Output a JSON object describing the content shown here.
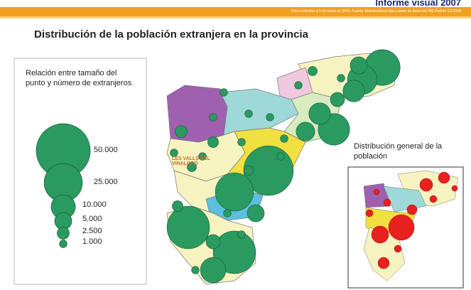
{
  "header": {
    "report": "Informe visual 2007",
    "source": "Datos referidos a 1 de enero de 2006. Fuente: Elaboración propia a partir de datos del INE Padrón 1/1/2006"
  },
  "title": "Distribución de la población extranjera  en la provincia",
  "legend": {
    "title": "Relación entre tamaño del punto y número de extranjeros",
    "sizes": [
      {
        "value": 50000,
        "label": "50.000"
      },
      {
        "value": 25000,
        "label": "25.000"
      },
      {
        "value": 10000,
        "label": "10.000"
      },
      {
        "value": 5000,
        "label": "5.000"
      },
      {
        "value": 2500,
        "label": "2.500"
      },
      {
        "value": 1000,
        "label": "1.000"
      }
    ]
  },
  "map": {
    "region_labels": [
      "LES VALLS DEL VINALOPÓ"
    ],
    "points": [
      22000,
      15000,
      8000,
      5000,
      3500,
      17000,
      8000,
      6000,
      42000,
      25000,
      31000,
      31000,
      11000,
      5000,
      3500,
      2500,
      2000,
      1500,
      1000,
      1000,
      1000,
      1000,
      1000,
      1000,
      1500,
      1000,
      1000,
      1000,
      1000,
      1500,
      1000,
      1000,
      2000,
      1000,
      1000
    ]
  },
  "inset": {
    "title": "Distribución general de la población"
  }
}
